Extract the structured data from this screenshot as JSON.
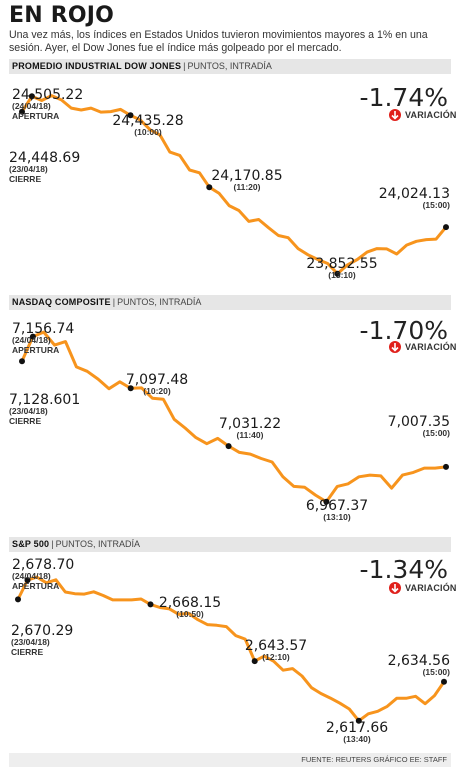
{
  "title": "EN ROJO",
  "subtitle": "Una vez más, los índices en Estados Unidos tuvieron movimientos mayores a 1% en una sesión. Ayer, el Dow Jones fue el índice más golpeado por el mercado.",
  "footer": "FUENTE: REUTERS GRÁFICO EE: STAFF",
  "chart_data": [
    {
      "type": "line",
      "name": "PROMEDIO INDUSTRIAL DOW JONES",
      "unit": "PUNTOS, INTRADÍA",
      "change": "-1.74%",
      "change_label": "VARIACIÓN",
      "line_color": "#f7941d",
      "values": [
        24448.69,
        24505.22,
        24490,
        24508,
        24492,
        24462,
        24455,
        24462,
        24447,
        24449,
        24457,
        24435.28,
        24418,
        24382,
        24363,
        24300,
        24288,
        24234,
        24224,
        24170.85,
        24148,
        24103,
        24085,
        24045,
        24052,
        24022,
        23993,
        23985,
        23945,
        23922,
        23905,
        23890,
        23852.55,
        23885,
        23905,
        23932,
        23945,
        23944,
        23925,
        23958,
        23972,
        23978,
        23980,
        24024.13
      ],
      "ylim": [
        23800,
        24580
      ],
      "annotations": [
        {
          "value": "24,505.22",
          "date": "(24/04/18)",
          "note": "APERTURA",
          "i": 1
        },
        {
          "value": "24,448.69",
          "date": "(23/04/18)",
          "note": "CIERRE",
          "i": 0
        },
        {
          "value": "24,435.28",
          "time": "(10:00)",
          "i": 11
        },
        {
          "value": "24,170.85",
          "time": "(11:20)",
          "i": 19
        },
        {
          "value": "23,852.55",
          "time": "(13:10)",
          "i": 32
        },
        {
          "value": "24,024.13",
          "time": "(15:00)",
          "i": 43
        }
      ]
    },
    {
      "type": "line",
      "name": "NASDAQ COMPOSITE",
      "unit": "PUNTOS, INTRADÍA",
      "change": "-1.70%",
      "change_label": "VARIACIÓN",
      "line_color": "#f7941d",
      "values": [
        7128.601,
        7156.74,
        7162,
        7147,
        7151,
        7122,
        7117,
        7108,
        7097,
        7105,
        7097.48,
        7098,
        7086,
        7085,
        7062,
        7052,
        7041,
        7034,
        7040,
        7031.22,
        7024,
        7022,
        7017,
        7013,
        6996,
        6985,
        6984,
        6975,
        6967.37,
        6985,
        6988,
        6996,
        6998,
        6997,
        6983,
        6998,
        7001,
        7006,
        7006,
        7007.35
      ],
      "ylim": [
        6935,
        7185
      ],
      "annotations": [
        {
          "value": "7,156.74",
          "date": "(24/04/18)",
          "note": "APERTURA",
          "i": 1
        },
        {
          "value": "7,128.601",
          "date": "(23/04/18)",
          "note": "CIERRE",
          "i": 0
        },
        {
          "value": "7,097.48",
          "time": "(10:20)",
          "i": 10
        },
        {
          "value": "7,031.22",
          "time": "(11:40)",
          "i": 19
        },
        {
          "value": "6,967.37",
          "time": "(13:10)",
          "i": 28
        },
        {
          "value": "7,007.35",
          "time": "(15:00)",
          "i": 39
        }
      ]
    },
    {
      "type": "line",
      "name": "S&P 500",
      "unit": "PUNTOS, INTRADÍA",
      "change": "-1.34%",
      "change_label": "VARIACIÓN",
      "line_color": "#f7941d",
      "values": [
        2670.29,
        2678.7,
        2680,
        2677.5,
        2678.8,
        2673.5,
        2672.8,
        2672.6,
        2673.6,
        2672,
        2670.1,
        2670.1,
        2670.1,
        2670.5,
        2668.15,
        2666.8,
        2666.2,
        2663.8,
        2664.3,
        2661.5,
        2659.4,
        2659.1,
        2658.5,
        2654.6,
        2653.1,
        2643.57,
        2645.7,
        2643.5,
        2639.6,
        2640.3,
        2637.1,
        2632,
        2629.5,
        2627.5,
        2625.3,
        2622.8,
        2617.66,
        2620.7,
        2621.8,
        2623.9,
        2627.4,
        2627.4,
        2628.3,
        2625.1,
        2628.6,
        2634.56
      ],
      "ylim": [
        2605,
        2690
      ],
      "annotations": [
        {
          "value": "2,678.70",
          "date": "(24/04/18)",
          "note": "APERTURA",
          "i": 1
        },
        {
          "value": "2,670.29",
          "date": "(23/04/18)",
          "note": "CIERRE",
          "i": 0
        },
        {
          "value": "2,668.15",
          "time": "(10:50)",
          "i": 14
        },
        {
          "value": "2,643.57",
          "time": "(12:10)",
          "i": 25
        },
        {
          "value": "2,617.66",
          "time": "(13:40)",
          "i": 36
        },
        {
          "value": "2,634.56",
          "time": "(15:00)",
          "i": 45
        }
      ]
    }
  ]
}
